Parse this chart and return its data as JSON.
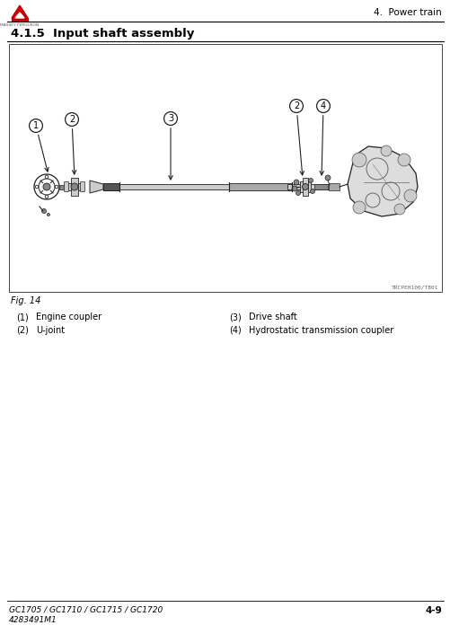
{
  "page_title": "4.  Power train",
  "section_title": "4.1.5  Input shaft assembly",
  "fig_label": "Fig. 14",
  "parts": [
    {
      "num": "1",
      "name": "Engine coupler"
    },
    {
      "num": "2",
      "name": "U-joint"
    },
    {
      "num": "3",
      "name": "Drive shaft"
    },
    {
      "num": "4",
      "name": "Hydrostatic transmission coupler"
    }
  ],
  "footer_left_line1": "GC1705 / GC1710 / GC1715 / GC1720",
  "footer_left_line2": "4283491M1",
  "footer_right": "4-9",
  "diagram_ref": "TRCPEH100/T801",
  "bg_color": "#ffffff",
  "border_color": "#444444",
  "text_color": "#000000",
  "header_line_color": "#000000",
  "footer_line_color": "#000000",
  "part_num_color": "#000000",
  "logo_color": "#cc0000",
  "box_bg": "#ffffff",
  "diagram_color": "#222222",
  "diagram_gray": "#888888",
  "diagram_light": "#cccccc"
}
